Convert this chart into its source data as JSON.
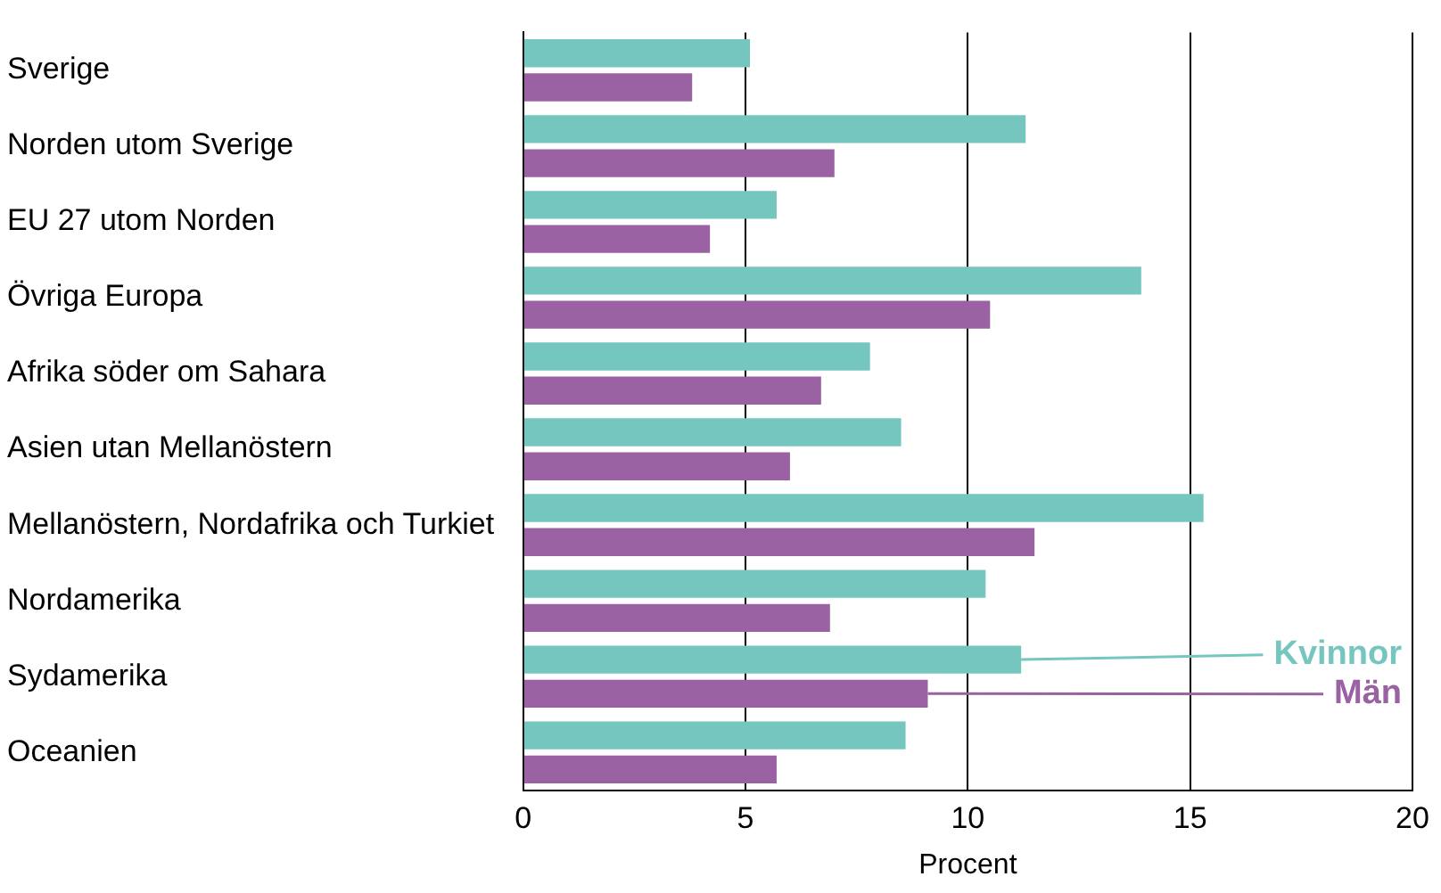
{
  "chart_data": {
    "type": "bar",
    "orientation": "horizontal",
    "xlabel": "Procent",
    "categories": [
      "Sverige",
      "Norden utom Sverige",
      "EU 27 utom Norden",
      "Övriga Europa",
      "Afrika söder om Sahara",
      "Asien utan Mellanöstern",
      "Mellanöstern, Nordafrika och Turkiet",
      "Nordamerika",
      "Sydamerika",
      "Oceanien"
    ],
    "series": [
      {
        "name": "Kvinnor",
        "color": "#76c6c0",
        "values": [
          5.1,
          11.3,
          5.7,
          13.9,
          7.8,
          8.5,
          15.3,
          10.4,
          11.2,
          8.6
        ]
      },
      {
        "name": "Män",
        "color": "#9b62a3",
        "values": [
          3.8,
          7.0,
          4.2,
          10.5,
          6.7,
          6.0,
          11.5,
          6.9,
          9.1,
          5.7
        ]
      }
    ],
    "xlim": [
      0,
      20
    ],
    "xticks": [
      0,
      5,
      10,
      15,
      20
    ],
    "grid": "x",
    "legend": false
  }
}
